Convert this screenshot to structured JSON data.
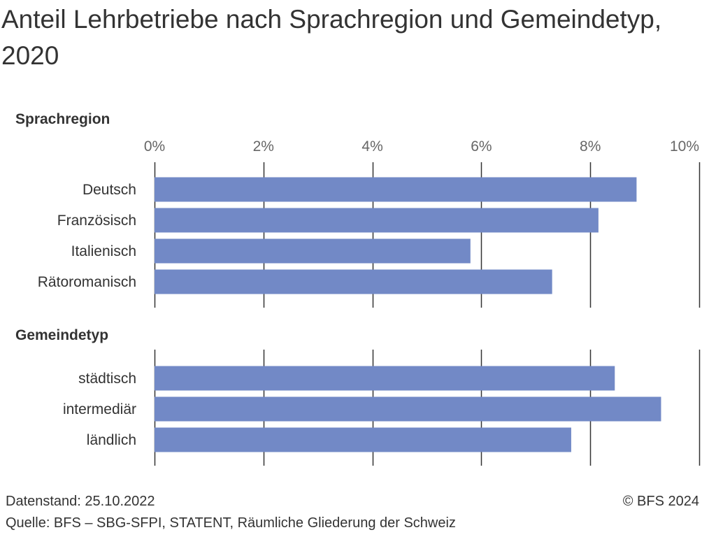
{
  "title": "Anteil Lehrbetriebe nach Sprachregion und Gemeindetyp, 2020",
  "footer": {
    "datenstand": "Datenstand: 25.10.2022",
    "quelle": "Quelle: BFS – SBG-SFPI, STATENT, Räumliche Gliederung der Schweiz",
    "copyright": "© BFS 2024"
  },
  "colors": {
    "bar": "#7289c6",
    "grid": "#333333",
    "text": "#333333",
    "tick": "#666666"
  },
  "chart_data": {
    "type": "bar",
    "orientation": "horizontal",
    "xlim": [
      0,
      10
    ],
    "x_ticks": [
      "0%",
      "2%",
      "4%",
      "6%",
      "8%",
      "10%"
    ],
    "grid": true,
    "groups": [
      {
        "name": "Sprachregion",
        "categories": [
          "Deutsch",
          "Französisch",
          "Italienisch",
          "Rätoromanisch"
        ],
        "values": [
          8.85,
          8.15,
          5.8,
          7.3
        ]
      },
      {
        "name": "Gemeindetyp",
        "categories": [
          "städtisch",
          "intermediär",
          "ländlich"
        ],
        "values": [
          8.45,
          9.3,
          7.65
        ]
      }
    ]
  }
}
